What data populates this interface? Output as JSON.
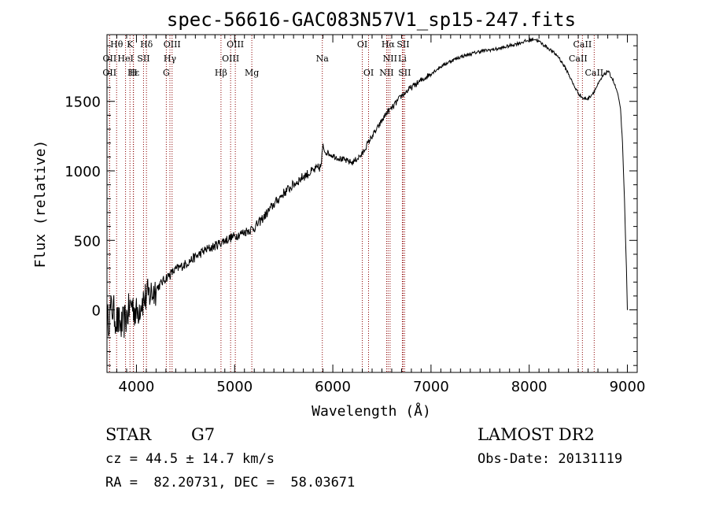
{
  "chart_data": {
    "type": "line",
    "title": "spec-56616-GAC083N57V1_sp15-247.fits",
    "xlabel": "Wavelength (Å)",
    "ylabel": "Flux (relative)",
    "xlim": [
      3700,
      9100
    ],
    "ylim": [
      -450,
      1980
    ],
    "xticks": [
      4000,
      5000,
      6000,
      7000,
      8000,
      9000
    ],
    "yticks": [
      0,
      500,
      1000,
      1500
    ],
    "grid": false,
    "line_color": "#000000",
    "marker_color": "#8b0000",
    "series": [
      {
        "x": [
          3700,
          3750,
          3800,
          3850,
          3900,
          3950,
          4000,
          4050,
          4100,
          4150,
          4200,
          4300,
          4400,
          4500,
          4600,
          4700,
          4800,
          4900,
          5000,
          5100,
          5200,
          5300,
          5400,
          5500,
          5600,
          5700,
          5800,
          5880,
          5900,
          5920,
          6000,
          6100,
          6200,
          6300,
          6350,
          6400,
          6450,
          6500,
          6550,
          6600,
          6700,
          6800,
          6900,
          7000,
          7100,
          7200,
          7300,
          7400,
          7500,
          7600,
          7700,
          7800,
          7900,
          8000,
          8050,
          8100,
          8200,
          8300,
          8400,
          8450,
          8500,
          8550,
          8600,
          8650,
          8700,
          8750,
          8800,
          8850,
          8900,
          8930,
          8950,
          8970,
          8990,
          9000
        ],
        "y": [
          -100,
          20,
          -80,
          -120,
          -50,
          50,
          -30,
          60,
          90,
          120,
          150,
          230,
          290,
          330,
          380,
          430,
          460,
          500,
          530,
          560,
          590,
          670,
          760,
          840,
          900,
          960,
          1000,
          1030,
          1180,
          1140,
          1110,
          1080,
          1060,
          1120,
          1190,
          1250,
          1300,
          1360,
          1420,
          1450,
          1540,
          1600,
          1650,
          1700,
          1750,
          1790,
          1820,
          1840,
          1860,
          1870,
          1880,
          1900,
          1920,
          1940,
          1950,
          1930,
          1880,
          1820,
          1700,
          1620,
          1560,
          1520,
          1520,
          1560,
          1620,
          1680,
          1720,
          1660,
          1560,
          1450,
          1200,
          800,
          300,
          0
        ]
      }
    ],
    "line_markers": [
      {
        "label": "Hθ",
        "x": 3798,
        "row": 0
      },
      {
        "label": "K",
        "x": 3934,
        "row": 0
      },
      {
        "label": "Hδ",
        "x": 4102,
        "row": 0
      },
      {
        "label": "OIII",
        "x": 4363,
        "row": 0
      },
      {
        "label": "OIII",
        "x": 5007,
        "row": 0
      },
      {
        "label": "OI",
        "x": 6300,
        "row": 0
      },
      {
        "label": "Hα",
        "x": 6563,
        "row": 0
      },
      {
        "label": "SII",
        "x": 6716,
        "row": 0
      },
      {
        "label": "CaII",
        "x": 8542,
        "row": 0
      },
      {
        "label": "OII",
        "x": 3727,
        "row": 1
      },
      {
        "label": "HeI",
        "x": 3889,
        "row": 1
      },
      {
        "label": "SII",
        "x": 4072,
        "row": 1
      },
      {
        "label": "Hγ",
        "x": 4341,
        "row": 1
      },
      {
        "label": "OIII",
        "x": 4959,
        "row": 1
      },
      {
        "label": "Na",
        "x": 5893,
        "row": 1
      },
      {
        "label": "NII",
        "x": 6583,
        "row": 1
      },
      {
        "label": "Li",
        "x": 6708,
        "row": 1
      },
      {
        "label": "CaII",
        "x": 8498,
        "row": 1
      },
      {
        "label": "OII",
        "x": 3726,
        "row": 2
      },
      {
        "label": "Hε",
        "x": 3970,
        "row": 2
      },
      {
        "label": "H",
        "x": 3968,
        "row": 2
      },
      {
        "label": "G",
        "x": 4304,
        "row": 2
      },
      {
        "label": "Hβ",
        "x": 4861,
        "row": 2
      },
      {
        "label": "Mg",
        "x": 5175,
        "row": 2
      },
      {
        "label": "OI",
        "x": 6364,
        "row": 2
      },
      {
        "label": "NII",
        "x": 6548,
        "row": 2
      },
      {
        "label": "SII",
        "x": 6731,
        "row": 2
      },
      {
        "label": "CaII",
        "x": 8662,
        "row": 2
      }
    ]
  },
  "info": {
    "object_class": "STAR",
    "subclass": "G7",
    "survey": "LAMOST DR2",
    "redshift": "cz = 44.5 ± 14.7 km/s",
    "obs_date": "Obs-Date: 20131119",
    "coords": "RA =  82.20731, DEC =  58.03671"
  }
}
